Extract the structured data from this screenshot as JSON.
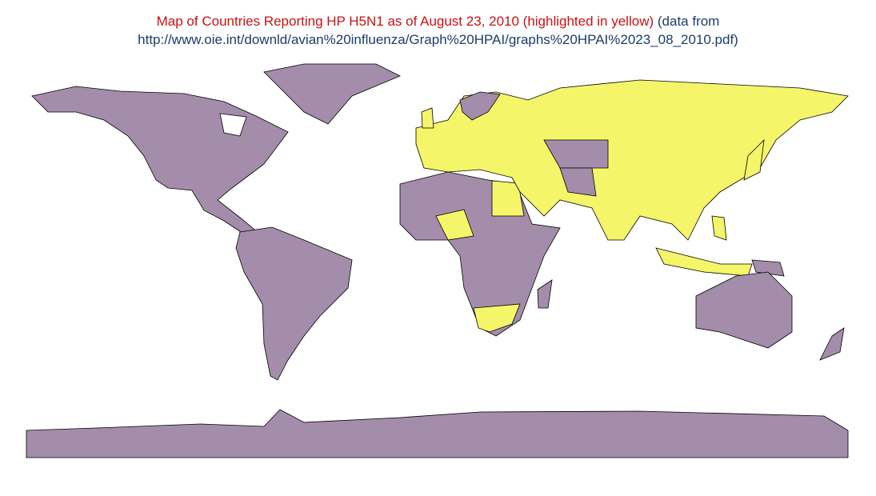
{
  "header": {
    "title": "Map of Countries Reporting HP H5N1 as of August 23, 2010 (highlighted in yellow)",
    "source_prefix": "(data from",
    "source_url": "http://www.oie.int/downld/avian%20influenza/Graph%20HPAI/graphs%20HPAI%2023_08_2010.pdf)"
  }
}
